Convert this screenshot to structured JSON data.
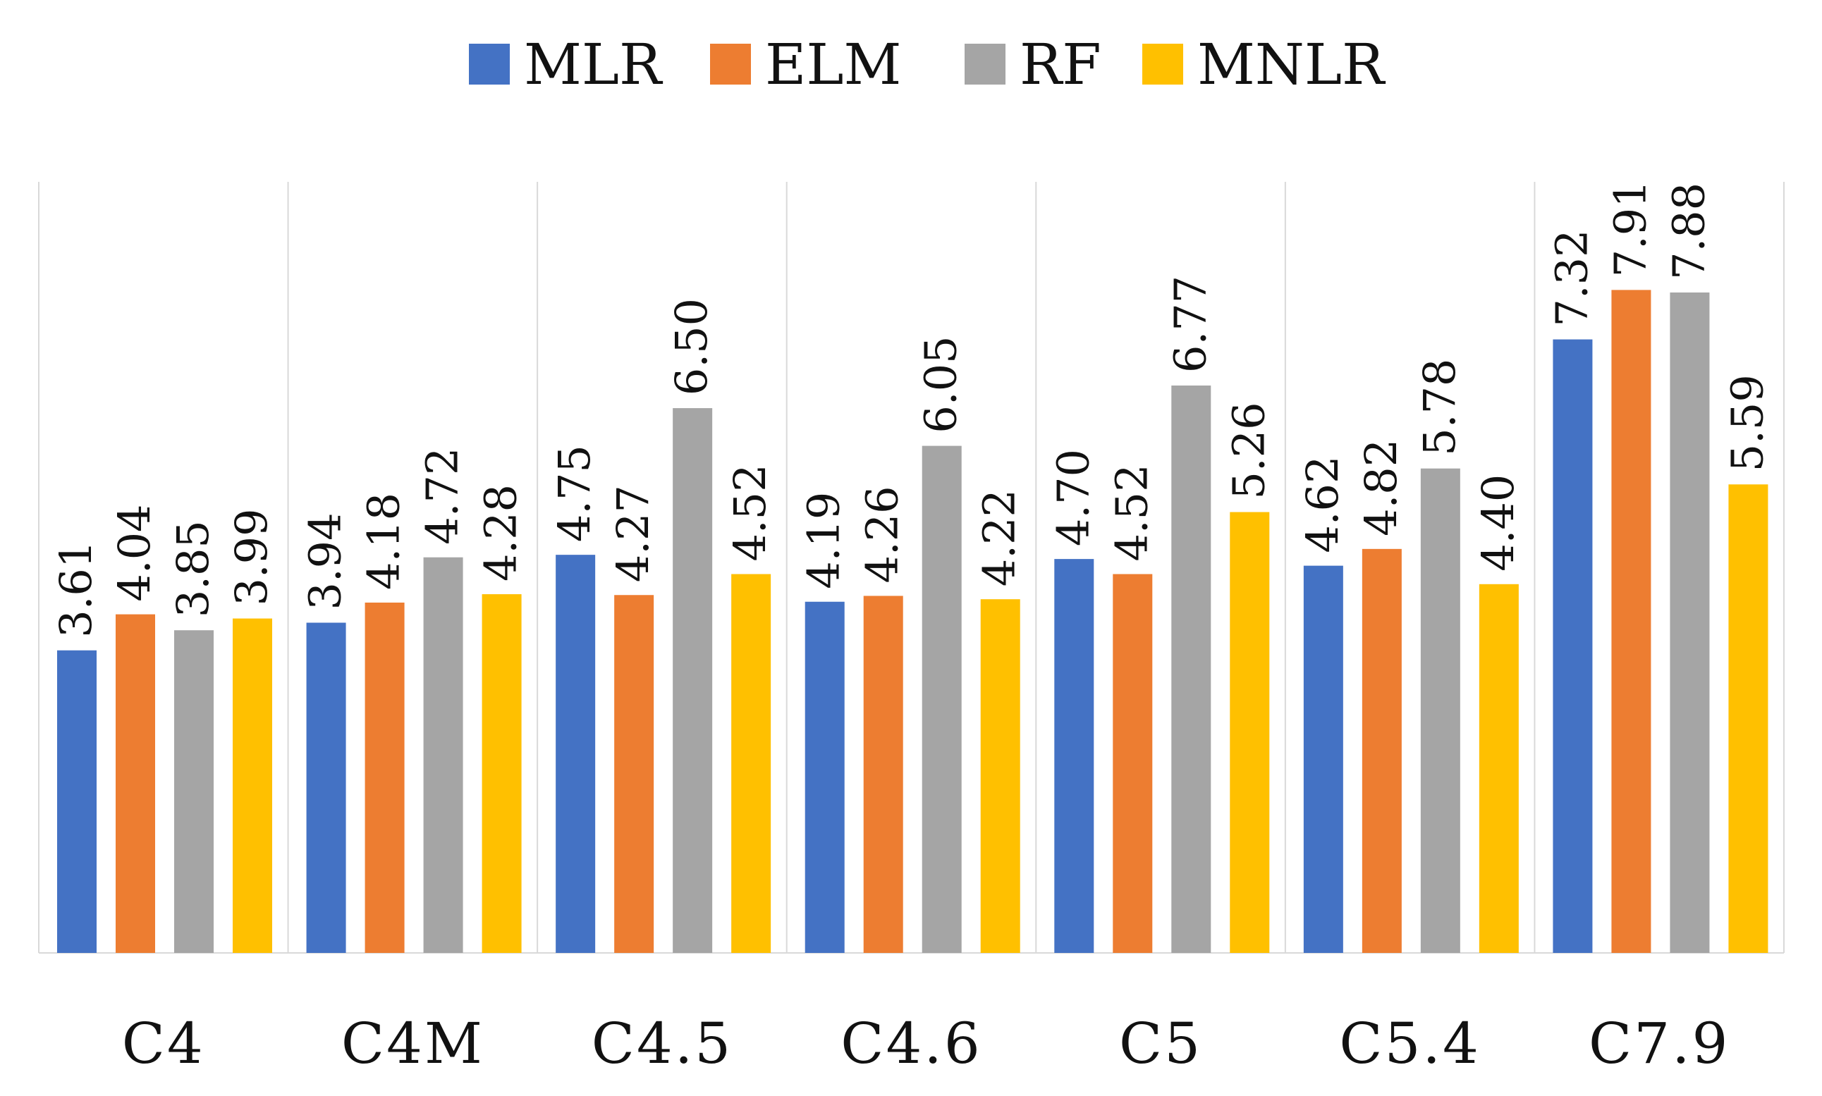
{
  "chart_data": {
    "type": "bar",
    "title": "",
    "xlabel": "",
    "ylabel": "",
    "ylim": [
      0,
      9.2
    ],
    "grid": false,
    "legend_position": "top-center",
    "categories": [
      "C4",
      "C4M",
      "C4.5",
      "C4.6",
      "C5",
      "C5.4",
      "C7.9"
    ],
    "series": [
      {
        "name": "MLR",
        "color": "#4472C4",
        "values": [
          3.61,
          3.94,
          4.75,
          4.19,
          4.7,
          4.62,
          7.32
        ],
        "labels": [
          "3.61",
          "3.94",
          "4.75",
          "4.19",
          "4.70",
          "4.62",
          "7.32"
        ]
      },
      {
        "name": "ELM",
        "color": "#ED7D31",
        "values": [
          4.04,
          4.18,
          4.27,
          4.26,
          4.52,
          4.82,
          7.91
        ],
        "labels": [
          "4.04",
          "4.18",
          "4.27",
          "4.26",
          "4.52",
          "4.82",
          "7.91"
        ]
      },
      {
        "name": "RF",
        "color": "#A5A5A5",
        "values": [
          3.85,
          4.72,
          6.5,
          6.05,
          6.77,
          5.78,
          7.88
        ],
        "labels": [
          "3.85",
          "4.72",
          "6.50",
          "6.05",
          "6.77",
          "5.78",
          "7.88"
        ]
      },
      {
        "name": "MNLR",
        "color": "#FFC000",
        "values": [
          3.99,
          4.28,
          4.52,
          4.22,
          5.26,
          4.4,
          5.59
        ],
        "labels": [
          "3.99",
          "4.28",
          "4.52",
          "4.22",
          "5.26",
          "4.40",
          "5.59"
        ]
      }
    ]
  }
}
